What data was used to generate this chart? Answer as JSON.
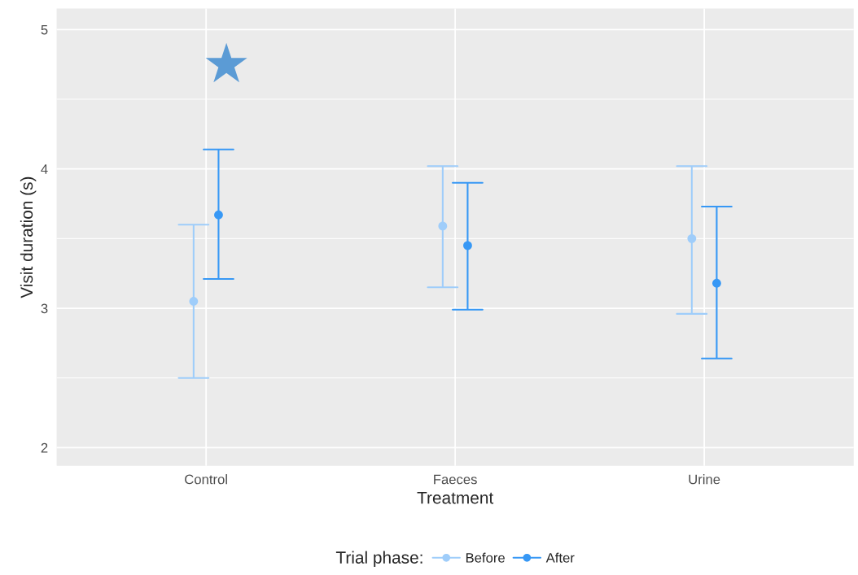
{
  "chart_data": {
    "type": "scatter",
    "xlabel": "Treatment",
    "ylabel": "Visit duration (s)",
    "legend_title": "Trial phase:",
    "categories": [
      "Control",
      "Faeces",
      "Urine"
    ],
    "series": [
      {
        "name": "Before",
        "color": "#9fcdfa",
        "values": [
          3.05,
          3.59,
          3.5
        ],
        "errors": [
          [
            2.5,
            3.6
          ],
          [
            3.15,
            4.02
          ],
          [
            2.96,
            4.02
          ]
        ]
      },
      {
        "name": "After",
        "color": "#3798f5",
        "values": [
          3.67,
          3.45,
          3.18
        ],
        "errors": [
          [
            3.21,
            4.14
          ],
          [
            2.99,
            3.9
          ],
          [
            2.64,
            3.73
          ]
        ]
      }
    ],
    "ylim": [
      1.87,
      5.15
    ],
    "yticks": [
      2,
      3,
      4,
      5
    ],
    "grid": true,
    "legend": "bottom",
    "marker": "circle",
    "annotations": [
      "★"
    ]
  }
}
